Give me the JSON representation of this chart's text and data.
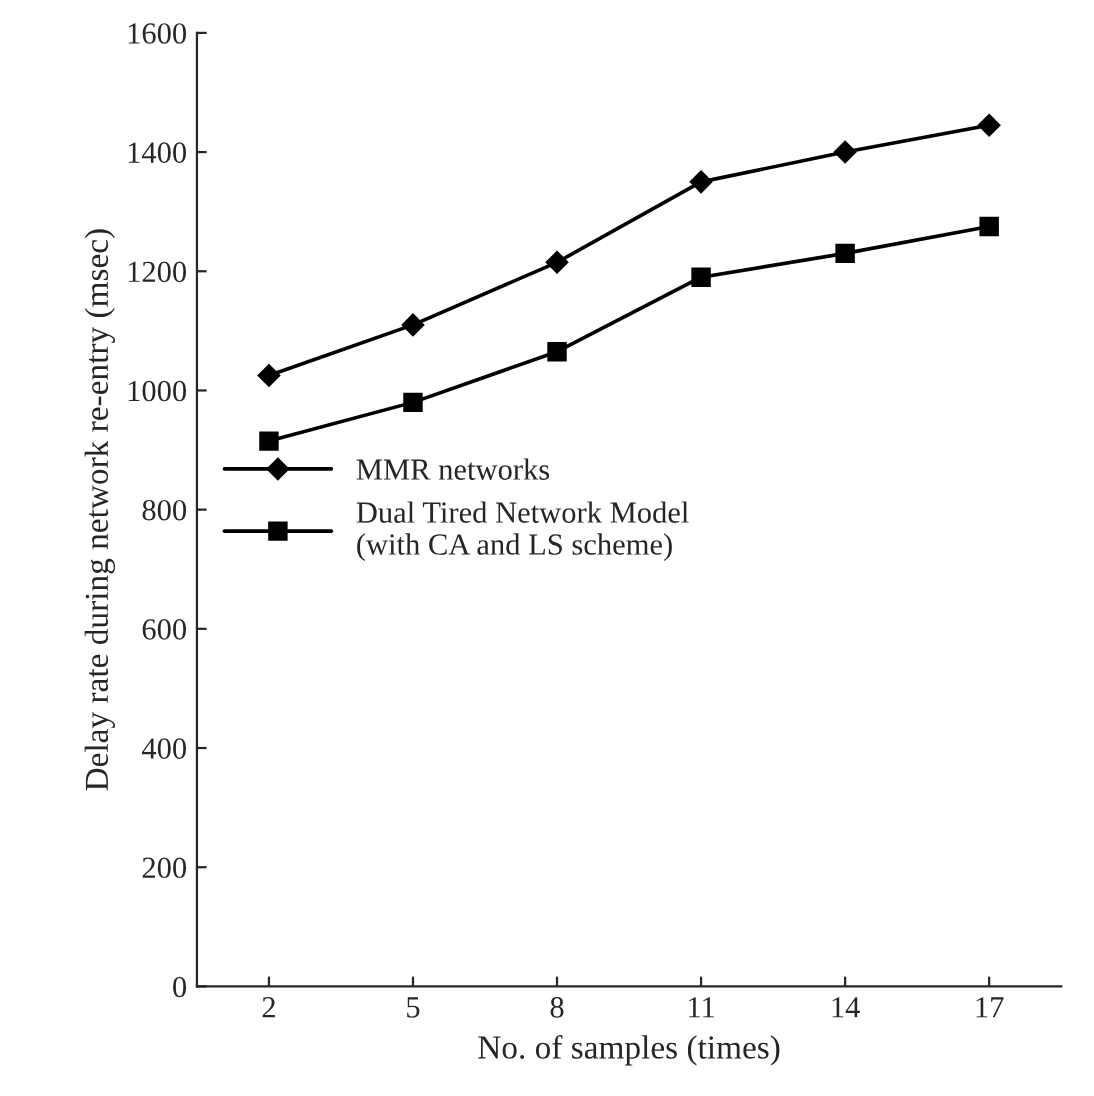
{
  "chart_data": {
    "type": "line",
    "xlabel": "No. of samples (times)",
    "ylabel": "Delay rate during network re-entry (msec)",
    "categories": [
      "2",
      "5",
      "8",
      "11",
      "14",
      "17"
    ],
    "ylim": [
      0,
      1600
    ],
    "yticks": [
      0,
      200,
      400,
      600,
      800,
      1000,
      1200,
      1400,
      1600
    ],
    "grid": false,
    "legend": "left",
    "series": [
      {
        "name": "MMR networks",
        "color": "#000000",
        "marker": "diamond",
        "values": [
          1025,
          1110,
          1215,
          1350,
          1400,
          1445
        ]
      },
      {
        "name": "Dual Tired Network Model\n(with CA and LS scheme)",
        "color": "#000000",
        "marker": "square",
        "values": [
          915,
          980,
          1065,
          1190,
          1230,
          1275
        ]
      }
    ]
  }
}
